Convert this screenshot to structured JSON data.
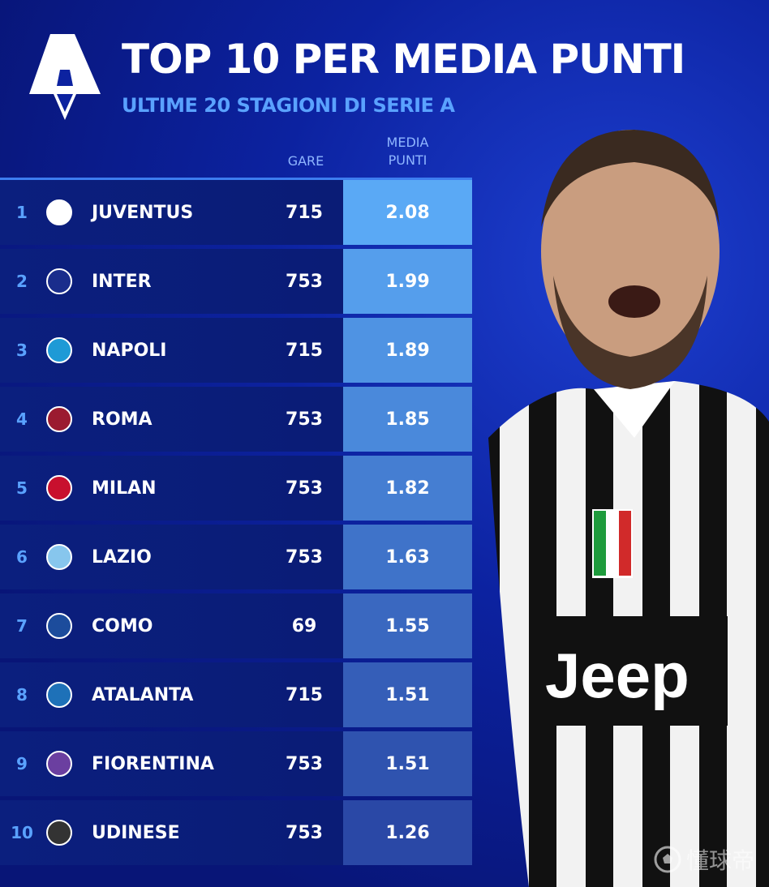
{
  "header": {
    "title": "TOP 10 PER MEDIA PUNTI",
    "subtitle": "ULTIME 20 STAGIONI DI SERIE A",
    "logo": "serie-a-logo"
  },
  "columns": {
    "gare": "GARE",
    "media_line1": "MEDIA",
    "media_line2": "PUNTI"
  },
  "colors": {
    "background": "#0a1a8c",
    "accent": "#5aa2ff",
    "media_top": "#5aa9f5",
    "media_bottom": "#2a48a6"
  },
  "chart_data": {
    "type": "table",
    "title": "TOP 10 PER MEDIA PUNTI",
    "subtitle": "ULTIME 20 STAGIONI DI SERIE A",
    "columns": [
      "",
      "",
      "GARE",
      "MEDIA PUNTI"
    ],
    "rows": [
      {
        "rank": "1",
        "team": "JUVENTUS",
        "gare": "715",
        "media": "2.08",
        "crest": "juventus-crest-icon",
        "color": "#ffffff"
      },
      {
        "rank": "2",
        "team": "INTER",
        "gare": "753",
        "media": "1.99",
        "crest": "inter-crest-icon",
        "color": "#1a2d8c"
      },
      {
        "rank": "3",
        "team": "NAPOLI",
        "gare": "715",
        "media": "1.89",
        "crest": "napoli-crest-icon",
        "color": "#1e9ad6"
      },
      {
        "rank": "4",
        "team": "ROMA",
        "gare": "753",
        "media": "1.85",
        "crest": "roma-crest-icon",
        "color": "#9b1b30"
      },
      {
        "rank": "5",
        "team": "MILAN",
        "gare": "753",
        "media": "1.82",
        "crest": "milan-crest-icon",
        "color": "#c8102e"
      },
      {
        "rank": "6",
        "team": "LAZIO",
        "gare": "753",
        "media": "1.63",
        "crest": "lazio-crest-icon",
        "color": "#87c6ed"
      },
      {
        "rank": "7",
        "team": "COMO",
        "gare": "69",
        "media": "1.55",
        "crest": "como-crest-icon",
        "color": "#1c4c9c"
      },
      {
        "rank": "8",
        "team": "ATALANTA",
        "gare": "715",
        "media": "1.51",
        "crest": "atalanta-crest-icon",
        "color": "#1e71b8"
      },
      {
        "rank": "9",
        "team": "FIORENTINA",
        "gare": "753",
        "media": "1.51",
        "crest": "fiorentina-crest-icon",
        "color": "#6b3fa0"
      },
      {
        "rank": "10",
        "team": "UDINESE",
        "gare": "753",
        "media": "1.26",
        "crest": "udinese-crest-icon",
        "color": "#333333"
      }
    ]
  },
  "watermark": "懂球帝"
}
